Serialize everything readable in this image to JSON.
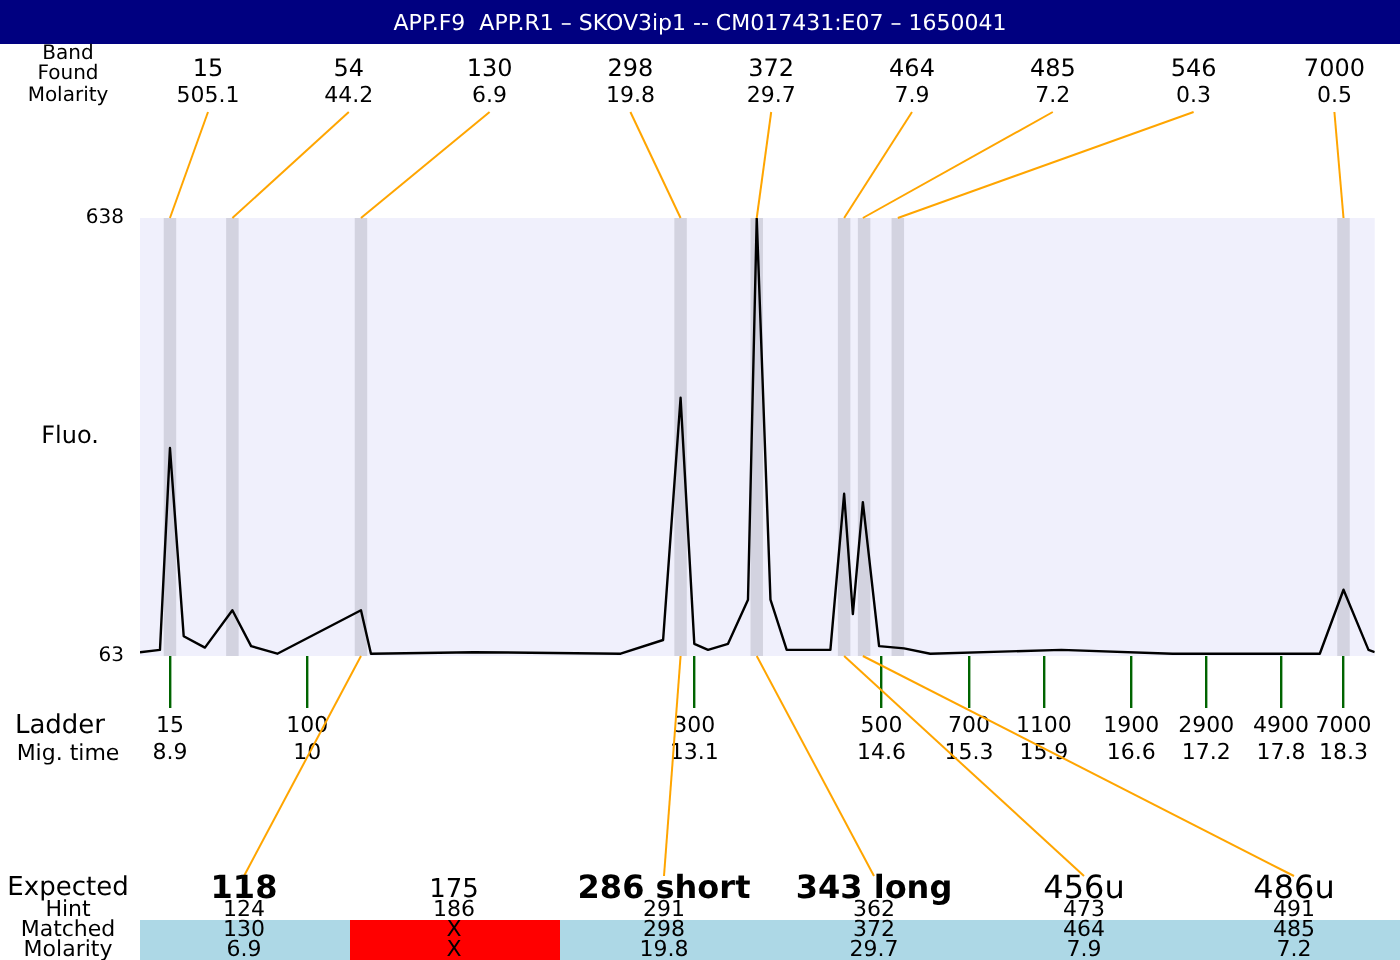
{
  "chart_data": {
    "type": "line",
    "title": "APP.F9  APP.R1 – SKOV3ip1 -- CM017431:E07 – 1650041",
    "ylabel": "Fluo.",
    "xlabel": "Mig. time",
    "xlim": [
      8.66,
      18.55
    ],
    "ylim": [
      63,
      638
    ],
    "yticks": [
      63,
      638
    ],
    "xticks": [
      8.9,
      10,
      13.1,
      14.6,
      15.3,
      15.9,
      16.6,
      17.2,
      17.8,
      18.3
    ],
    "grid": false,
    "legend": false,
    "marker": "none",
    "series": [
      {
        "color": "#000000",
        "x": [
          8.66,
          8.82,
          8.9,
          9.01,
          9.18,
          9.4,
          9.55,
          9.76,
          10.43,
          10.51,
          11.33,
          12.51,
          12.85,
          12.99,
          13.1,
          13.21,
          13.37,
          13.53,
          13.6,
          13.71,
          13.84,
          14.19,
          14.3,
          14.37,
          14.45,
          14.58,
          14.78,
          14.99,
          16.04,
          16.93,
          18.11,
          18.3,
          18.5,
          18.55
        ],
        "values": [
          68,
          71,
          336,
          89,
          74,
          123,
          76,
          66,
          123,
          66,
          68,
          66,
          84,
          402,
          79,
          71,
          79,
          137,
          638,
          137,
          71,
          71,
          276,
          118,
          265,
          76,
          73,
          66,
          71,
          66,
          66,
          150,
          71,
          68
        ]
      }
    ],
    "bands": [
      {
        "axis": "x",
        "from": 8.85,
        "to": 8.95,
        "color": "#d3d3e0"
      },
      {
        "axis": "x",
        "from": 9.35,
        "to": 9.45,
        "color": "#d3d3e0"
      },
      {
        "axis": "x",
        "from": 10.38,
        "to": 10.48,
        "color": "#d3d3e0"
      },
      {
        "axis": "x",
        "from": 12.94,
        "to": 13.04,
        "color": "#d3d3e0"
      },
      {
        "axis": "x",
        "from": 13.55,
        "to": 13.65,
        "color": "#d3d3e0"
      },
      {
        "axis": "x",
        "from": 14.25,
        "to": 14.35,
        "color": "#d3d3e0"
      },
      {
        "axis": "x",
        "from": 14.41,
        "to": 14.51,
        "color": "#d3d3e0"
      },
      {
        "axis": "x",
        "from": 14.68,
        "to": 14.78,
        "color": "#d3d3e0"
      },
      {
        "axis": "x",
        "from": 18.25,
        "to": 18.35,
        "color": "#d3d3e0"
      }
    ],
    "annotations": [
      "Band",
      "Found",
      "Molarity",
      {
        "text": "15\n505.1",
        "x": 8.9,
        "y": 638
      },
      {
        "text": "54\n44.2",
        "x": 9.4,
        "y": 638
      },
      {
        "text": "130\n6.9",
        "x": 10.43,
        "y": 638
      },
      {
        "text": "298\n19.8",
        "x": 12.99,
        "y": 638
      },
      {
        "text": "372\n29.7",
        "x": 13.6,
        "y": 638
      },
      {
        "text": "464\n7.9",
        "x": 14.3,
        "y": 638
      },
      {
        "text": "485\n7.2",
        "x": 14.45,
        "y": 638
      },
      {
        "text": "546\n0.3",
        "x": 14.73,
        "y": 638
      },
      {
        "text": "7000\n0.5",
        "x": 18.3,
        "y": 638
      },
      "Expected",
      {
        "text": "118",
        "x": 10.43,
        "y": 63
      },
      {
        "text": "175"
      },
      {
        "text": "286 short",
        "x": 12.99,
        "y": 63
      },
      {
        "text": "343 long",
        "x": 13.6,
        "y": 63
      },
      {
        "text": "456u",
        "x": 14.3,
        "y": 63
      },
      {
        "text": "486u",
        "x": 14.45,
        "y": 63
      },
      "Hint",
      "124",
      "186",
      "291",
      "362",
      "473",
      "491",
      "Matched",
      "130",
      "X",
      "298",
      "372",
      "464",
      "485",
      "Molarity",
      "6.9",
      "X",
      "19.8",
      "29.7",
      "7.9",
      "7.2",
      "Ladder",
      "15",
      "100",
      "300",
      "500",
      "700",
      "1100",
      "1900",
      "2900",
      "4900",
      "7000"
    ]
  }
}
